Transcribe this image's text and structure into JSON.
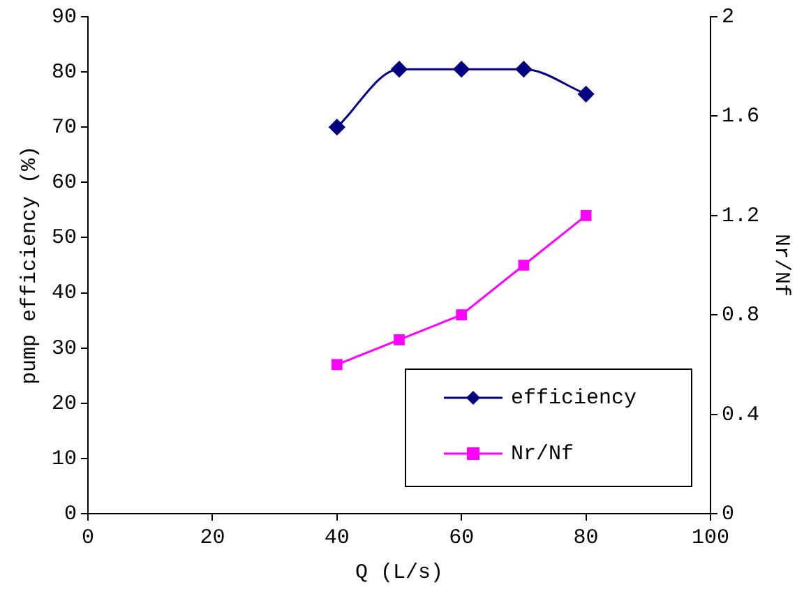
{
  "chart_data": {
    "type": "line",
    "xlabel": "Q (L/s)",
    "ylabel": "pump efficiency (%)",
    "y2label": "Nr/Nf",
    "x": [
      40,
      50,
      60,
      70,
      80
    ],
    "series": [
      {
        "name": "efficiency",
        "color": "#000080",
        "marker": "diamond",
        "values": [
          70,
          80.5,
          80.5,
          80.5,
          76
        ]
      },
      {
        "name": "Nr/Nf",
        "color": "#ff00ff",
        "marker": "square",
        "axis": "y2",
        "values": [
          0.6,
          0.7,
          0.8,
          1.0,
          1.2
        ]
      }
    ],
    "xlim": [
      0,
      100
    ],
    "xticks": [
      0,
      20,
      40,
      60,
      80,
      100
    ],
    "ylim": [
      0,
      90
    ],
    "yticks": [
      0,
      10,
      20,
      30,
      40,
      50,
      60,
      70,
      80,
      90
    ],
    "y2lim": [
      0,
      2
    ],
    "y2ticks": [
      0,
      0.4,
      0.8,
      1.2,
      1.6,
      2
    ],
    "grid": false,
    "legend": "bottom right",
    "line_style": "solid"
  }
}
